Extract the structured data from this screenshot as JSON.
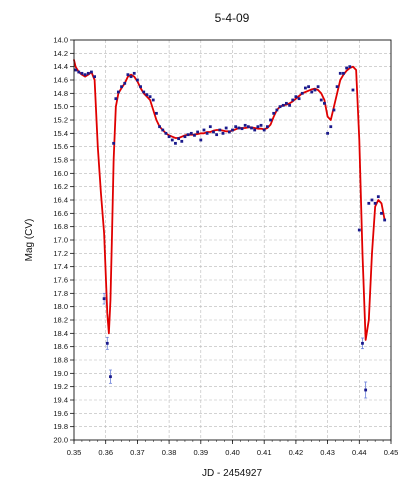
{
  "chart_data": {
    "type": "scatter",
    "title": "5-4-09",
    "xlabel": "JD - 2454927",
    "ylabel": "Mag (CV)",
    "xlim": [
      0.35,
      0.45
    ],
    "ylim": [
      14.0,
      20.0
    ],
    "y_inverted": true,
    "grid": true,
    "x_ticks": [
      "0.35",
      "0.36",
      "0.37",
      "0.38",
      "0.39",
      "0.40",
      "0.41",
      "0.42",
      "0.43",
      "0.44",
      "0.45"
    ],
    "y_ticks": [
      "14.0",
      "14.2",
      "14.4",
      "14.6",
      "14.8",
      "15.0",
      "15.2",
      "15.4",
      "15.6",
      "15.8",
      "16.0",
      "16.2",
      "16.4",
      "16.6",
      "16.8",
      "17.0",
      "17.2",
      "17.4",
      "17.6",
      "17.8",
      "18.0",
      "18.2",
      "18.4",
      "18.6",
      "18.8",
      "19.0",
      "19.2",
      "19.4",
      "19.6",
      "19.8",
      "20.0"
    ],
    "colors": {
      "points": "#1a1a8c",
      "fit": "#e00000",
      "error_bars": "#6a7fd8"
    },
    "series": [
      {
        "style": "points",
        "x": [
          0.3505,
          0.3515,
          0.3525,
          0.3535,
          0.3545,
          0.3555,
          0.3565,
          0.3595,
          0.3605,
          0.3615,
          0.3625,
          0.3632,
          0.364,
          0.365,
          0.366,
          0.367,
          0.368,
          0.369,
          0.37,
          0.371,
          0.372,
          0.373,
          0.374,
          0.375,
          0.376,
          0.377,
          0.378,
          0.379,
          0.38,
          0.381,
          0.382,
          0.383,
          0.384,
          0.385,
          0.386,
          0.387,
          0.388,
          0.389,
          0.39,
          0.391,
          0.392,
          0.393,
          0.394,
          0.395,
          0.396,
          0.397,
          0.398,
          0.399,
          0.4,
          0.401,
          0.402,
          0.403,
          0.404,
          0.405,
          0.406,
          0.407,
          0.408,
          0.409,
          0.41,
          0.411,
          0.412,
          0.413,
          0.414,
          0.415,
          0.416,
          0.417,
          0.418,
          0.419,
          0.42,
          0.421,
          0.422,
          0.423,
          0.424,
          0.425,
          0.426,
          0.427,
          0.428,
          0.429,
          0.43,
          0.431,
          0.432,
          0.433,
          0.434,
          0.435,
          0.436,
          0.437,
          0.438,
          0.44,
          0.441,
          0.442,
          0.443,
          0.444,
          0.445,
          0.446,
          0.447,
          0.448
        ],
        "y": [
          14.45,
          14.48,
          14.5,
          14.52,
          14.5,
          14.48,
          14.55,
          17.88,
          18.55,
          19.05,
          15.55,
          14.88,
          14.78,
          14.7,
          14.65,
          14.52,
          14.55,
          14.5,
          14.6,
          14.7,
          14.78,
          14.82,
          14.85,
          14.9,
          15.1,
          15.3,
          15.35,
          15.4,
          15.45,
          15.5,
          15.55,
          15.48,
          15.52,
          15.45,
          15.42,
          15.4,
          15.43,
          15.38,
          15.5,
          15.35,
          15.4,
          15.3,
          15.38,
          15.42,
          15.35,
          15.4,
          15.32,
          15.38,
          15.35,
          15.3,
          15.32,
          15.33,
          15.28,
          15.3,
          15.32,
          15.35,
          15.3,
          15.28,
          15.35,
          15.3,
          15.2,
          15.1,
          15.05,
          15.0,
          14.98,
          14.95,
          14.98,
          14.9,
          14.85,
          14.88,
          14.8,
          14.72,
          14.7,
          14.78,
          14.75,
          14.7,
          14.9,
          14.95,
          15.4,
          15.3,
          15.05,
          14.7,
          14.5,
          14.5,
          14.42,
          14.4,
          14.75,
          16.85,
          18.55,
          19.25,
          16.45,
          16.4,
          16.45,
          16.35,
          16.6,
          16.7
        ]
      },
      {
        "style": "line",
        "x": [
          0.35,
          0.3505,
          0.3515,
          0.3525,
          0.3535,
          0.3545,
          0.3555,
          0.3565,
          0.3575,
          0.3585,
          0.3595,
          0.3605,
          0.361,
          0.3615,
          0.362,
          0.3625,
          0.3632,
          0.364,
          0.365,
          0.366,
          0.367,
          0.368,
          0.369,
          0.37,
          0.371,
          0.372,
          0.373,
          0.374,
          0.375,
          0.376,
          0.377,
          0.378,
          0.379,
          0.38,
          0.381,
          0.382,
          0.383,
          0.384,
          0.385,
          0.386,
          0.387,
          0.388,
          0.389,
          0.39,
          0.391,
          0.392,
          0.393,
          0.394,
          0.395,
          0.396,
          0.397,
          0.398,
          0.399,
          0.4,
          0.401,
          0.402,
          0.403,
          0.404,
          0.405,
          0.406,
          0.407,
          0.408,
          0.409,
          0.41,
          0.411,
          0.412,
          0.413,
          0.414,
          0.415,
          0.416,
          0.417,
          0.418,
          0.419,
          0.42,
          0.421,
          0.422,
          0.423,
          0.424,
          0.425,
          0.426,
          0.427,
          0.428,
          0.429,
          0.43,
          0.431,
          0.432,
          0.433,
          0.434,
          0.435,
          0.436,
          0.437,
          0.438,
          0.439,
          0.44,
          0.441,
          0.442,
          0.443,
          0.444,
          0.445,
          0.446,
          0.447,
          0.448
        ],
        "y": [
          14.3,
          14.4,
          14.48,
          14.52,
          14.55,
          14.52,
          14.48,
          14.6,
          15.6,
          16.3,
          16.9,
          18.1,
          18.4,
          17.9,
          16.9,
          15.8,
          15.0,
          14.8,
          14.72,
          14.65,
          14.55,
          14.52,
          14.55,
          14.62,
          14.72,
          14.8,
          14.85,
          14.9,
          15.05,
          15.2,
          15.3,
          15.35,
          15.4,
          15.43,
          15.45,
          15.47,
          15.47,
          15.45,
          15.43,
          15.42,
          15.42,
          15.42,
          15.41,
          15.4,
          15.4,
          15.38,
          15.38,
          15.36,
          15.35,
          15.35,
          15.36,
          15.37,
          15.37,
          15.36,
          15.34,
          15.32,
          15.32,
          15.32,
          15.31,
          15.31,
          15.32,
          15.33,
          15.33,
          15.34,
          15.32,
          15.27,
          15.15,
          15.05,
          15.0,
          14.98,
          14.97,
          14.95,
          14.92,
          14.88,
          14.84,
          14.8,
          14.78,
          14.76,
          14.74,
          14.73,
          14.75,
          14.8,
          14.9,
          15.15,
          15.2,
          15.0,
          14.8,
          14.6,
          14.52,
          14.46,
          14.42,
          14.4,
          14.45,
          15.5,
          17.2,
          18.5,
          18.2,
          17.2,
          16.5,
          16.4,
          16.45,
          16.7
        ]
      }
    ],
    "error_bars": [
      {
        "x": 0.3595,
        "y": 17.88,
        "err": 0.08
      },
      {
        "x": 0.3605,
        "y": 18.55,
        "err": 0.09
      },
      {
        "x": 0.3615,
        "y": 19.05,
        "err": 0.1
      },
      {
        "x": 0.441,
        "y": 18.55,
        "err": 0.08
      },
      {
        "x": 0.442,
        "y": 19.25,
        "err": 0.12
      }
    ]
  }
}
